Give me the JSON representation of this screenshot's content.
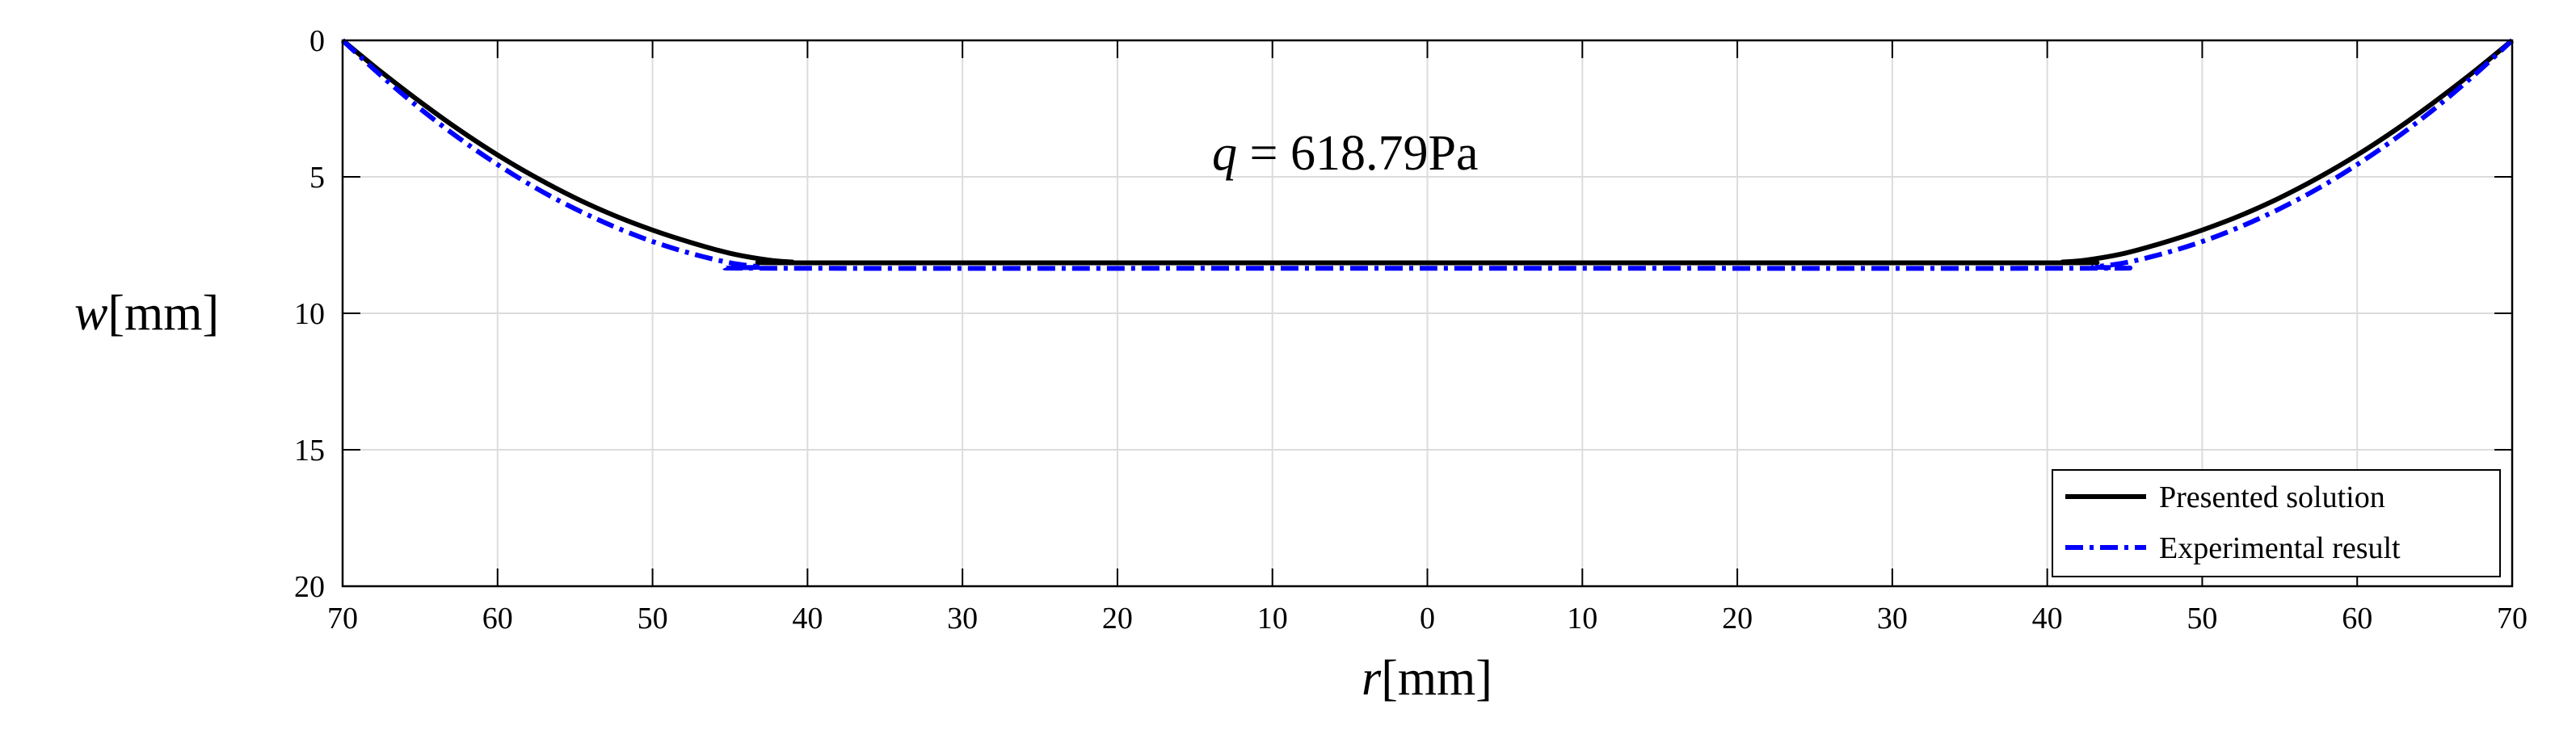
{
  "chart_data": {
    "type": "line",
    "xlabel_var": "r",
    "xlabel_unit": "[mm]",
    "ylabel_var": "w",
    "ylabel_unit": "[mm]",
    "xlim": [
      -70,
      70
    ],
    "ylim": [
      0,
      20
    ],
    "y_reversed": true,
    "grid": true,
    "x_ticks": [
      -70,
      -60,
      -50,
      -40,
      -30,
      -20,
      -10,
      0,
      10,
      20,
      30,
      40,
      50,
      60,
      70
    ],
    "x_tick_labels": [
      "70",
      "60",
      "50",
      "40",
      "30",
      "20",
      "10",
      "0",
      "10",
      "20",
      "30",
      "40",
      "50",
      "60",
      "70"
    ],
    "y_ticks": [
      0,
      5,
      10,
      15,
      20
    ],
    "y_tick_labels": [
      "0",
      "5",
      "10",
      "15",
      "20"
    ],
    "annotation": {
      "var": "q",
      "eq": " = ",
      "value": "618.79Pa"
    },
    "legend_position": "bottom-right",
    "series": [
      {
        "name": "Presented solution",
        "color": "#000000",
        "style": "solid",
        "x": [
          -70,
          -67.5,
          -65,
          -62.5,
          -60,
          -57.5,
          -55,
          -52.5,
          -50,
          -47.5,
          -45,
          -42.5,
          -41,
          -40,
          0,
          40,
          41,
          42.5,
          45,
          47.5,
          50,
          52.5,
          55,
          57.5,
          60,
          62.5,
          65,
          67.5,
          70
        ],
        "y": [
          0,
          1.16,
          2.25,
          3.27,
          4.2,
          5.03,
          5.77,
          6.41,
          6.95,
          7.41,
          7.8,
          8.05,
          8.12,
          8.15,
          8.15,
          8.15,
          8.12,
          8.05,
          7.8,
          7.41,
          6.95,
          6.41,
          5.77,
          5.03,
          4.2,
          3.27,
          2.25,
          1.16,
          0
        ]
      },
      {
        "name": "Experimental result",
        "color": "#0000ff",
        "style": "dashdot",
        "x": [
          -70,
          -67.5,
          -65,
          -62.5,
          -60,
          -57.5,
          -55,
          -52.5,
          -50,
          -47.5,
          -45,
          -43,
          -42,
          0,
          42,
          43,
          45,
          47.5,
          50,
          52.5,
          55,
          57.5,
          60,
          62.5,
          65,
          67.5,
          70
        ],
        "y": [
          0,
          1.3,
          2.5,
          3.58,
          4.55,
          5.42,
          6.17,
          6.82,
          7.37,
          7.81,
          8.15,
          8.3,
          8.35,
          8.35,
          8.35,
          8.3,
          8.15,
          7.81,
          7.37,
          6.82,
          6.17,
          5.42,
          4.55,
          3.58,
          2.5,
          1.3,
          0
        ]
      }
    ]
  }
}
